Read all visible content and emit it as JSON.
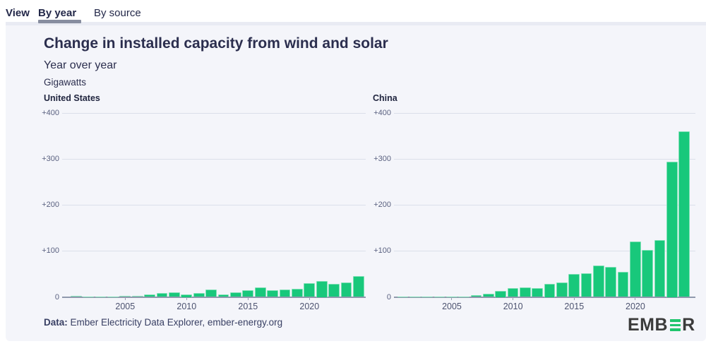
{
  "tabs": {
    "view_label": "View",
    "items": [
      {
        "label": "By year",
        "active": true
      },
      {
        "label": "By source",
        "active": false
      }
    ]
  },
  "header": {
    "title": "Change in installed capacity from wind and solar",
    "subtitle": "Year over year",
    "units": "Gigawatts"
  },
  "footer": {
    "prefix": "Data:",
    "text": " Ember Electricity Data Explorer, ember-energy.org",
    "logo_left": "EMB",
    "logo_right": "R"
  },
  "colors": {
    "bar_green": "#18c87b",
    "logo_green": "#1fc56d",
    "panel_bg": "#f4f5fa",
    "gridline": "#dbdfea",
    "axis": "#9099ad",
    "text_dark": "#2b2e4e"
  },
  "chart_data": [
    {
      "type": "bar",
      "title": "United States",
      "ylabel": "Gigawatts",
      "ylim": [
        0,
        400
      ],
      "grid": true,
      "ytick_labels": [
        "0",
        "+100",
        "+200",
        "+300",
        "+400"
      ],
      "ytick_values": [
        0,
        100,
        200,
        300,
        400
      ],
      "xtick_labels": [
        2005,
        2010,
        2015,
        2020
      ],
      "x": [
        2001,
        2002,
        2003,
        2004,
        2005,
        2006,
        2007,
        2008,
        2009,
        2010,
        2011,
        2012,
        2013,
        2014,
        2015,
        2016,
        2017,
        2018,
        2019,
        2020,
        2021,
        2022,
        2023,
        2024
      ],
      "values": [
        1.7,
        0.5,
        1.5,
        0.4,
        2.4,
        2.6,
        5.2,
        8.7,
        10.6,
        6.1,
        8.8,
        15.5,
        5.0,
        9.8,
        14.3,
        20.1,
        14.9,
        16.0,
        18.3,
        29.5,
        34.5,
        27.7,
        31.5,
        45.6
      ]
    },
    {
      "type": "bar",
      "title": "China",
      "ylabel": "Gigawatts",
      "ylim": [
        0,
        400
      ],
      "grid": true,
      "ytick_labels": [
        "0",
        "+100",
        "+200",
        "+300",
        "+400"
      ],
      "ytick_values": [
        0,
        100,
        200,
        300,
        400
      ],
      "xtick_labels": [
        2005,
        2010,
        2015,
        2020
      ],
      "x": [
        2001,
        2002,
        2003,
        2004,
        2005,
        2006,
        2007,
        2008,
        2009,
        2010,
        2011,
        2012,
        2013,
        2014,
        2015,
        2016,
        2017,
        2018,
        2019,
        2020,
        2021,
        2022,
        2023,
        2024
      ],
      "values": [
        0.1,
        0.2,
        0.2,
        0.3,
        0.6,
        1.5,
        3.5,
        6.5,
        13.8,
        19.0,
        20.0,
        18.7,
        28.3,
        31.0,
        49.5,
        51.5,
        68.0,
        64.5,
        54.5,
        120.5,
        101.5,
        123.5,
        293.5,
        359.0
      ]
    }
  ]
}
